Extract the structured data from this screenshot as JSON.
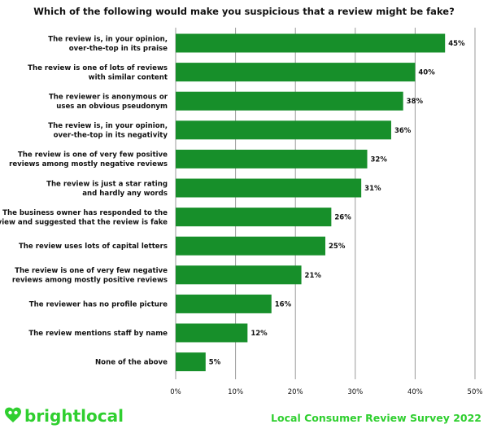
{
  "chart_data": {
    "type": "bar",
    "orientation": "horizontal",
    "title": "Which of the following would make you suspicious that a review might be fake?",
    "categories": [
      [
        "The review is, in your opinion,",
        "over-the-top in its praise"
      ],
      [
        "The review is one of lots of reviews",
        "with similar content"
      ],
      [
        "The reviewer is anonymous or",
        "uses an obvious pseudonym"
      ],
      [
        "The review is, in your opinion,",
        "over-the-top in its negativity"
      ],
      [
        "The review is one of very few positive",
        "reviews among mostly negative reviews"
      ],
      [
        "The review is just a star rating",
        "and hardly any words"
      ],
      [
        "The business owner has responded to the",
        "review and suggested that the review is fake"
      ],
      [
        "The review uses lots of capital letters"
      ],
      [
        "The review is one of very few negative",
        "reviews among mostly positive reviews"
      ],
      [
        "The reviewer has no profile picture"
      ],
      [
        "The review mentions staff by name"
      ],
      [
        "None of the above"
      ]
    ],
    "values": [
      45,
      40,
      38,
      36,
      32,
      31,
      26,
      25,
      21,
      16,
      12,
      5
    ],
    "value_labels": [
      "45%",
      "40%",
      "38%",
      "36%",
      "32%",
      "31%",
      "26%",
      "25%",
      "21%",
      "16%",
      "12%",
      "5%"
    ],
    "xlim": [
      0,
      50
    ],
    "xticks": [
      0,
      10,
      20,
      30,
      40,
      50
    ],
    "xtick_labels": [
      "0%",
      "10%",
      "20%",
      "30%",
      "40%",
      "50%"
    ],
    "xlabel": "",
    "ylabel": "",
    "grid": "vertical",
    "bar_color": "#178f2a"
  },
  "footer": {
    "logo_text": "brightlocal",
    "survey_label": "Local Consumer Review Survey 2022",
    "brand_color": "#2fcf2f"
  }
}
